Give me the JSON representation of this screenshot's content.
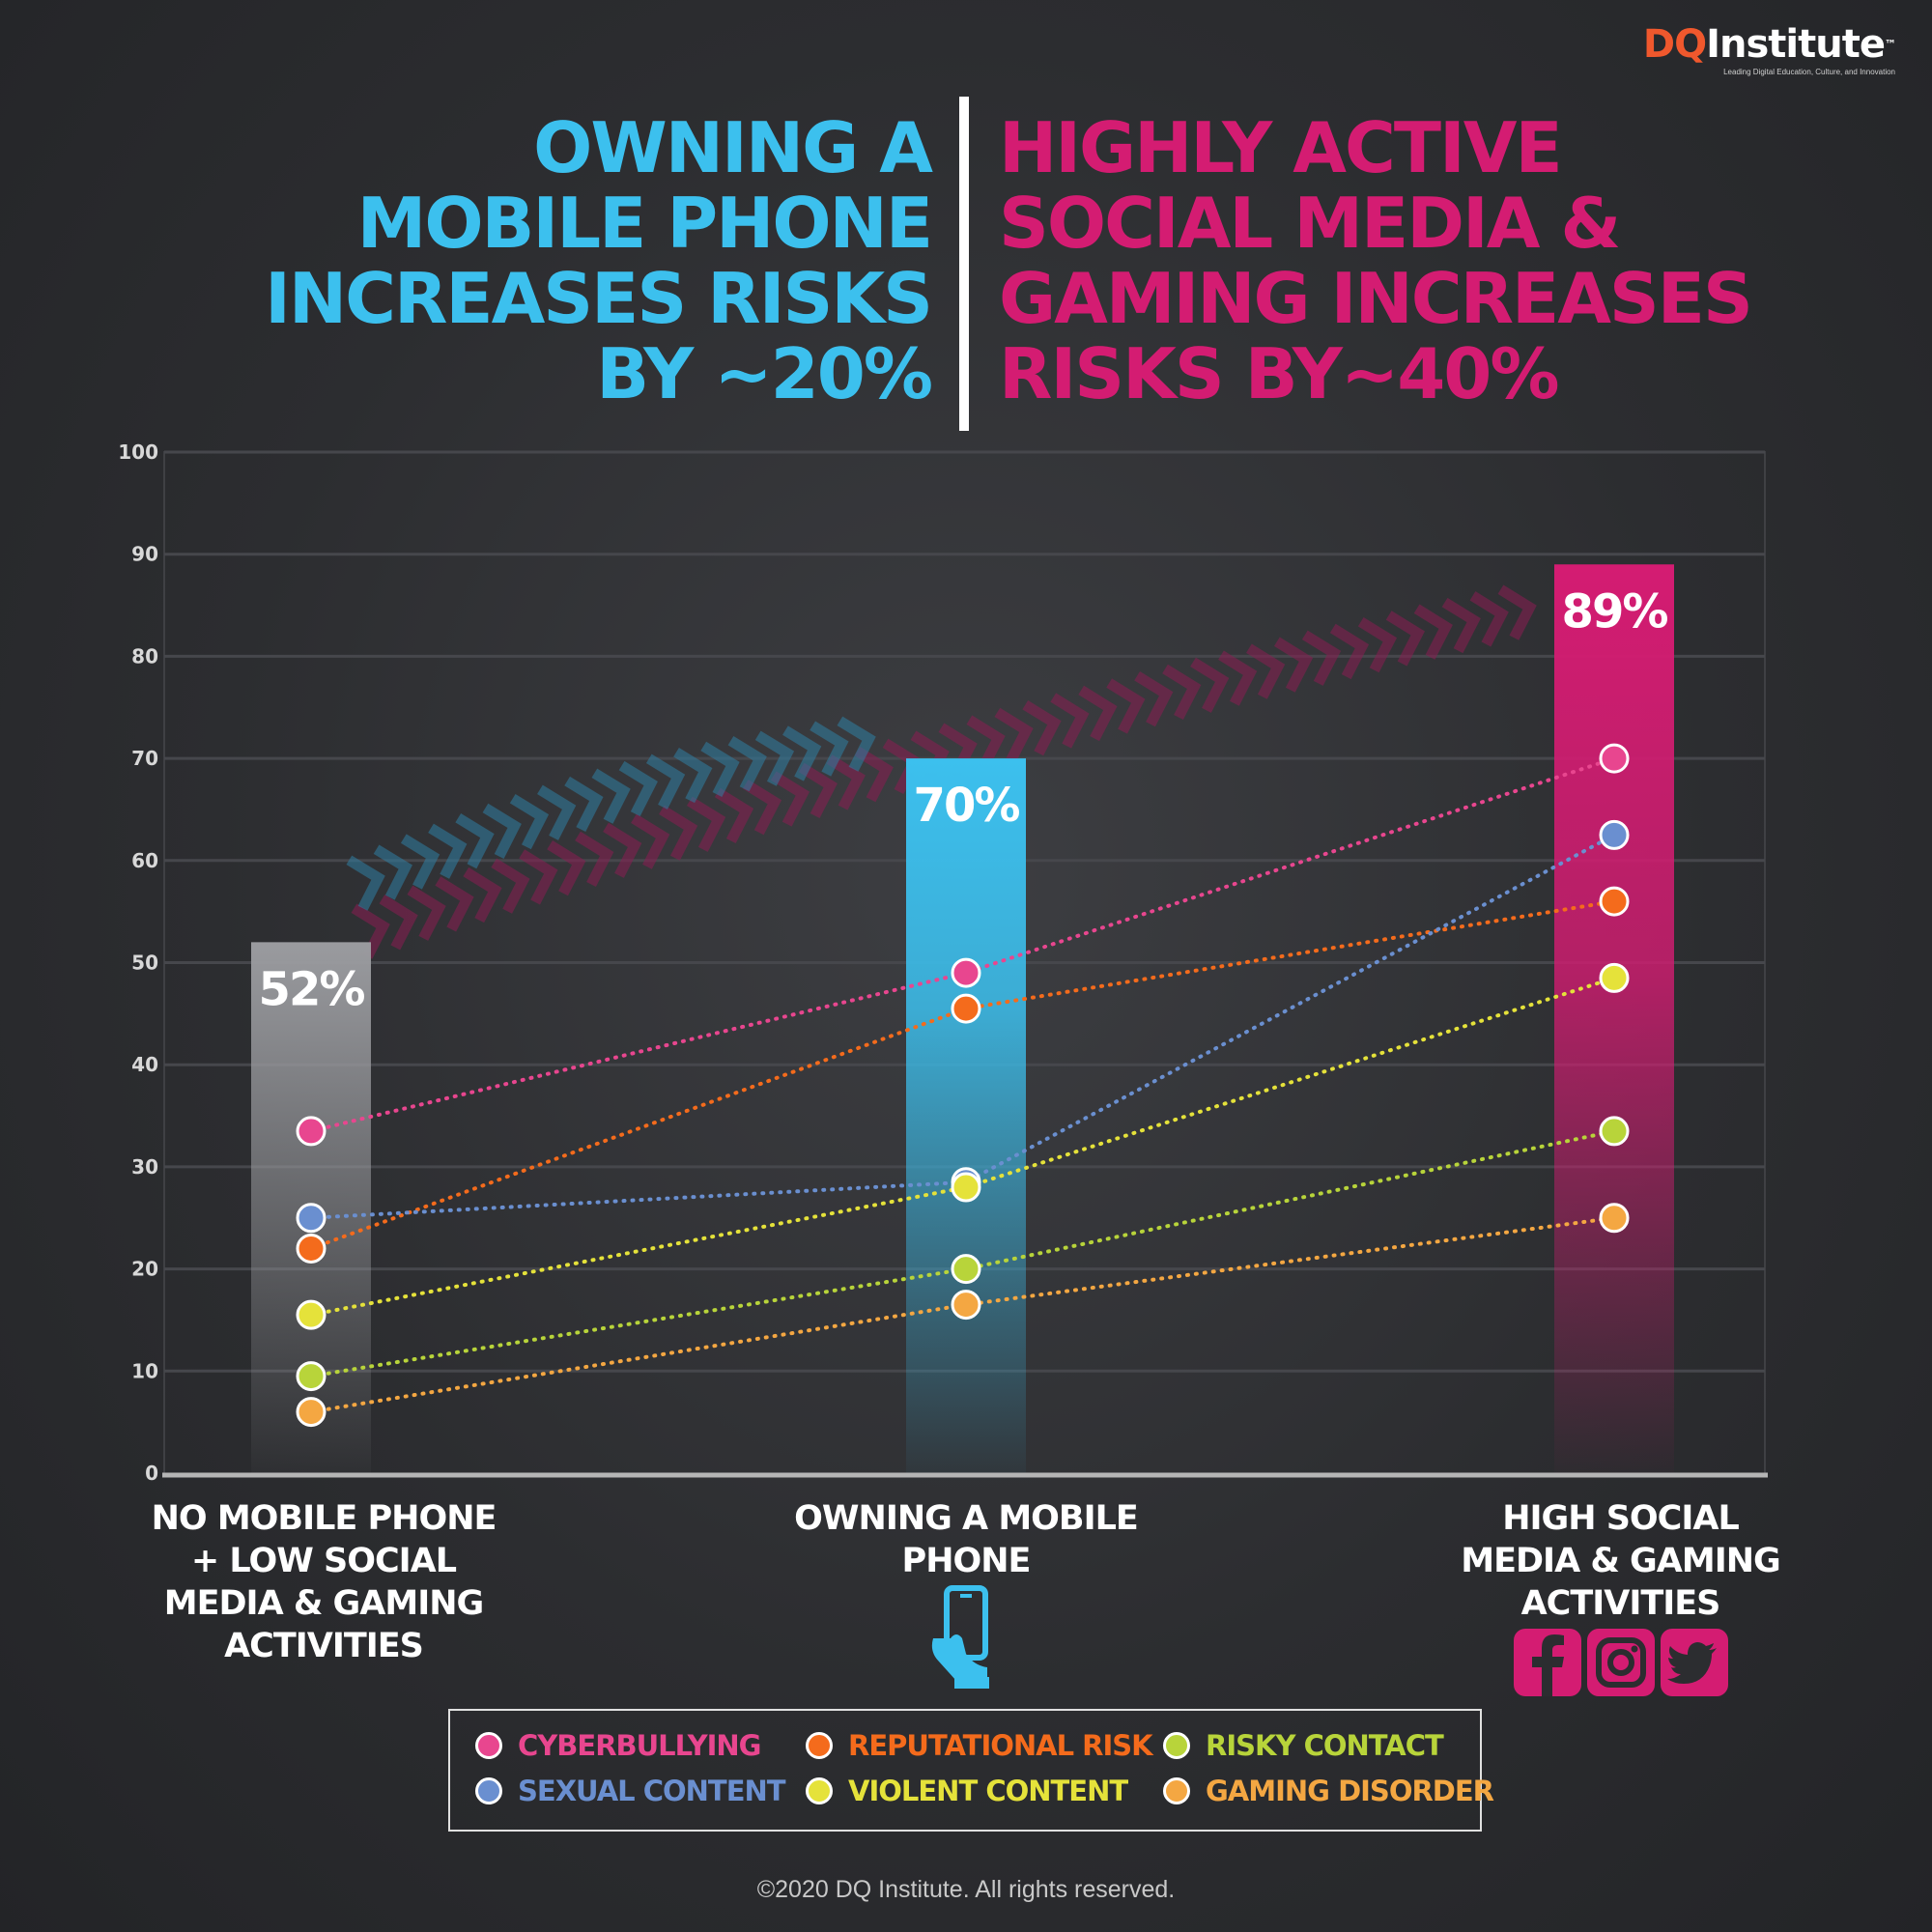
{
  "logo": {
    "dq": "DQ",
    "institute": "Institute",
    "trademark": "™",
    "tagline": "Leading Digital Education, Culture, and Innovation"
  },
  "headline_left": "OWNING A MOBILE PHONE INCREASES RISKS BY ~20%",
  "headline_right": "HIGHLY ACTIVE SOCIAL MEDIA & GAMING INCREASES RISKS BY~40%",
  "colors": {
    "background": "#2c2d30",
    "accent_blue": "#3cc0ee",
    "accent_pink": "#d41c72",
    "bar_gray": "#8a8b8f"
  },
  "chart_data": {
    "type": "bar",
    "categories": [
      "NO MOBILE PHONE + LOW SOCIAL MEDIA & GAMING ACTIVITIES",
      "OWNING A MOBILE PHONE",
      "HIGH SOCIAL MEDIA & GAMING ACTIVITIES"
    ],
    "bars": {
      "values": [
        52,
        70,
        89
      ],
      "labels": [
        "52%",
        "70%",
        "89%"
      ],
      "colors": [
        "#8a8b8f",
        "#3cc0ee",
        "#d41c72"
      ]
    },
    "series": [
      {
        "name": "CYBERBULLYING",
        "color": "#e8468f",
        "values": [
          33.5,
          49,
          70
        ]
      },
      {
        "name": "REPUTATIONAL RISK",
        "color": "#f46b1c",
        "values": [
          22,
          45.5,
          56
        ]
      },
      {
        "name": "RISKY CONTACT",
        "color": "#b8d43a",
        "values": [
          9.5,
          20,
          33.5
        ]
      },
      {
        "name": "SEXUAL CONTENT",
        "color": "#6a8fd0",
        "values": [
          25,
          28.5,
          62.5
        ]
      },
      {
        "name": "VIOLENT CONTENT",
        "color": "#e5e23a",
        "values": [
          15.5,
          28,
          48.5
        ]
      },
      {
        "name": "GAMING DISORDER",
        "color": "#f4a742",
        "values": [
          6,
          16.5,
          25
        ]
      }
    ],
    "ylim": [
      0,
      100
    ],
    "yticks": [
      0,
      10,
      20,
      30,
      40,
      50,
      60,
      70,
      80,
      90,
      100
    ],
    "grid": true,
    "legend_position": "bottom-center"
  },
  "copyright": "©2020 DQ Institute. All rights reserved."
}
